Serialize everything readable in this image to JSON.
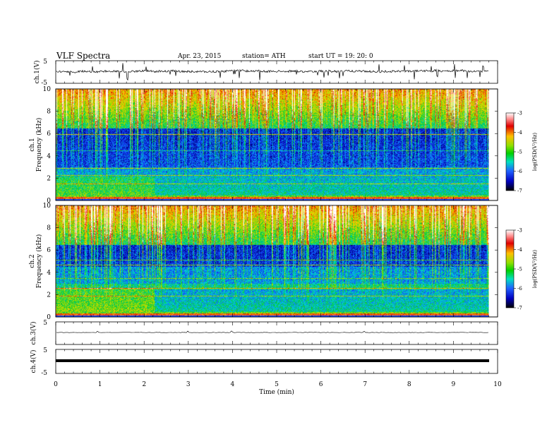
{
  "header": {
    "title": "VLF Spectra",
    "date": "Apr. 23, 2015",
    "station": "station= ATH",
    "start": "start  UT =   19: 20: 0"
  },
  "chart_data": [
    {
      "type": "line",
      "name": "ch1-waveform",
      "ylabel": "ch.1(V)",
      "ylim": [
        -5,
        5
      ],
      "yticks": [
        "5",
        "-5"
      ],
      "xlim": [
        0,
        10
      ],
      "data_extent_min": 9.8
    },
    {
      "type": "heatmap",
      "name": "ch1-spectrogram",
      "ylabel_lines": [
        "ch.1",
        "Frequency  (kHz)"
      ],
      "ylim": [
        0,
        10
      ],
      "yticks": [
        "0",
        "2",
        "4",
        "6",
        "8",
        "10"
      ],
      "colorbar": {
        "label": "log(PSD(V²/Hz)",
        "range": [
          -7,
          -3
        ],
        "ticks": [
          "-3",
          "-4",
          "-5",
          "-6",
          "-7"
        ]
      }
    },
    {
      "type": "heatmap",
      "name": "ch2-spectrogram",
      "ylabel_lines": [
        "ch.2",
        "Frequency  (kHz)"
      ],
      "ylim": [
        0,
        10
      ],
      "yticks": [
        "0",
        "2",
        "4",
        "6",
        "8",
        "10"
      ],
      "colorbar": {
        "label": "log(PSD(V²/Hz)",
        "range": [
          -7,
          -3
        ],
        "ticks": [
          "-3",
          "-4",
          "-5",
          "-6",
          "-7"
        ]
      }
    },
    {
      "type": "line",
      "name": "ch3-waveform",
      "ylabel": "ch.3(V)",
      "ylim": [
        -5,
        5
      ],
      "yticks": [
        "5"
      ]
    },
    {
      "type": "line",
      "name": "ch4-waveform",
      "ylabel": "ch.4(V)",
      "ylim": [
        -5,
        5
      ],
      "yticks": [
        "5",
        "-5"
      ]
    }
  ],
  "xaxis": {
    "label": "Time  (min)",
    "range": [
      0,
      10
    ],
    "ticks": [
      "0",
      "1",
      "2",
      "3",
      "4",
      "5",
      "6",
      "7",
      "8",
      "9",
      "10"
    ]
  }
}
